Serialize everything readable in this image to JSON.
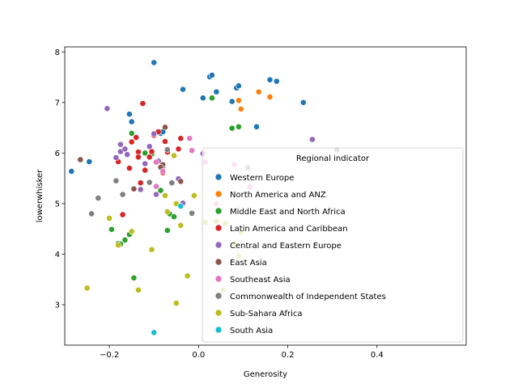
{
  "chart_data": {
    "type": "scatter",
    "xlabel": "Generosity",
    "ylabel": "lowerwhisker",
    "xlim": [
      -0.3,
      0.6
    ],
    "ylim": [
      2.2,
      8.1
    ],
    "xticks": [
      -0.2,
      0.0,
      0.2,
      0.4
    ],
    "xtick_labels": [
      "−0.2",
      "0.0",
      "0.2",
      "0.4"
    ],
    "yticks": [
      3,
      4,
      5,
      6,
      7,
      8
    ],
    "ytick_labels": [
      "3",
      "4",
      "5",
      "6",
      "7",
      "8"
    ],
    "grid": false,
    "legend": {
      "title": "Regional indicator",
      "placement": "lower-right"
    },
    "series": [
      {
        "name": "Western Europe",
        "color": "#1f77b4",
        "x": [
          -0.285,
          -0.245,
          -0.155,
          -0.15,
          -0.1,
          -0.085,
          -0.08,
          -0.035,
          0.01,
          0.025,
          0.03,
          0.04,
          0.075,
          0.085,
          0.09,
          0.13,
          0.16,
          0.175,
          0.235
        ],
        "y": [
          5.64,
          5.83,
          6.77,
          6.62,
          7.79,
          6.39,
          6.42,
          7.26,
          7.09,
          7.51,
          7.54,
          7.21,
          7.02,
          7.29,
          7.33,
          6.52,
          7.45,
          7.42,
          7.0
        ]
      },
      {
        "name": "North America and ANZ",
        "color": "#ff7f0e",
        "x": [
          0.09,
          0.095,
          0.135,
          0.16
        ],
        "y": [
          7.04,
          6.87,
          7.21,
          7.11
        ]
      },
      {
        "name": "Middle East and North Africa",
        "color": "#2ca02c",
        "x": [
          -0.18,
          -0.165,
          -0.155,
          -0.15,
          -0.145,
          -0.085,
          -0.07,
          -0.065,
          -0.055,
          -0.12,
          0.03,
          0.075,
          0.09,
          -0.195,
          -0.175,
          -0.105
        ],
        "y": [
          4.21,
          4.28,
          4.39,
          6.39,
          3.53,
          5.26,
          4.47,
          4.8,
          4.74,
          6.0,
          7.09,
          6.49,
          6.52,
          4.49,
          4.2,
          5.98
        ]
      },
      {
        "name": "Latin America and Caribbean",
        "color": "#d62728",
        "x": [
          -0.18,
          -0.17,
          -0.155,
          -0.15,
          -0.135,
          -0.13,
          -0.125,
          -0.12,
          -0.11,
          -0.1,
          -0.09,
          -0.08,
          -0.075,
          -0.07,
          -0.045,
          -0.04,
          -0.105,
          -0.135,
          -0.14
        ],
        "y": [
          5.83,
          4.78,
          5.7,
          6.22,
          6.02,
          5.41,
          6.98,
          5.66,
          5.92,
          6.35,
          6.42,
          5.61,
          6.23,
          6.02,
          6.08,
          6.29,
          6.03,
          5.92,
          6.31
        ]
      },
      {
        "name": "Central and Eastern Europe",
        "color": "#9467bd",
        "x": [
          -0.205,
          -0.185,
          -0.175,
          -0.165,
          -0.16,
          -0.13,
          -0.12,
          -0.11,
          -0.1,
          -0.095,
          -0.09,
          -0.08,
          -0.045,
          -0.035,
          -0.015,
          0.01,
          0.255,
          -0.175
        ],
        "y": [
          6.88,
          5.91,
          6.03,
          6.08,
          5.97,
          5.28,
          5.79,
          6.13,
          6.38,
          5.18,
          5.84,
          5.73,
          5.49,
          5.01,
          6.06,
          5.99,
          6.27,
          6.17
        ]
      },
      {
        "name": "East Asia",
        "color": "#8c564b",
        "x": [
          -0.265,
          -0.145,
          -0.075,
          -0.08,
          -0.085,
          -0.04
        ],
        "y": [
          5.87,
          5.29,
          6.51,
          5.77,
          5.72,
          5.44
        ]
      },
      {
        "name": "Southeast Asia",
        "color": "#e377c2",
        "x": [
          -0.095,
          -0.095,
          -0.08,
          -0.02,
          -0.015,
          0.015,
          0.04,
          0.08,
          0.115
        ],
        "y": [
          5.34,
          5.82,
          5.64,
          6.29,
          6.05,
          5.82,
          4.99,
          5.77,
          5.33
        ]
      },
      {
        "name": "Commonwealth of Independent States",
        "color": "#7f7f7f",
        "x": [
          -0.24,
          -0.225,
          -0.185,
          -0.17,
          -0.11,
          -0.07,
          -0.06,
          -0.015,
          0.11,
          0.31
        ],
        "y": [
          4.8,
          5.11,
          5.45,
          5.18,
          5.42,
          6.07,
          5.41,
          4.81,
          5.71,
          6.06
        ]
      },
      {
        "name": "Sub-Sahara Africa",
        "color": "#bcbd22",
        "x": [
          -0.25,
          -0.2,
          -0.18,
          -0.15,
          -0.135,
          -0.105,
          -0.075,
          -0.07,
          -0.055,
          -0.05,
          -0.04,
          -0.025,
          -0.01,
          -0.05,
          0.015,
          0.04,
          0.055,
          0.06,
          0.08,
          0.09,
          0.095
        ],
        "y": [
          3.33,
          4.71,
          4.18,
          4.45,
          3.29,
          4.09,
          5.16,
          4.84,
          5.95,
          3.03,
          4.57,
          3.57,
          5.16,
          5.0,
          4.63,
          4.65,
          3.29,
          4.61,
          4.2,
          3.96,
          4.43
        ]
      },
      {
        "name": "South Asia",
        "color": "#17becf",
        "x": [
          -0.1,
          -0.04
        ],
        "y": [
          2.45,
          4.95
        ]
      }
    ]
  }
}
